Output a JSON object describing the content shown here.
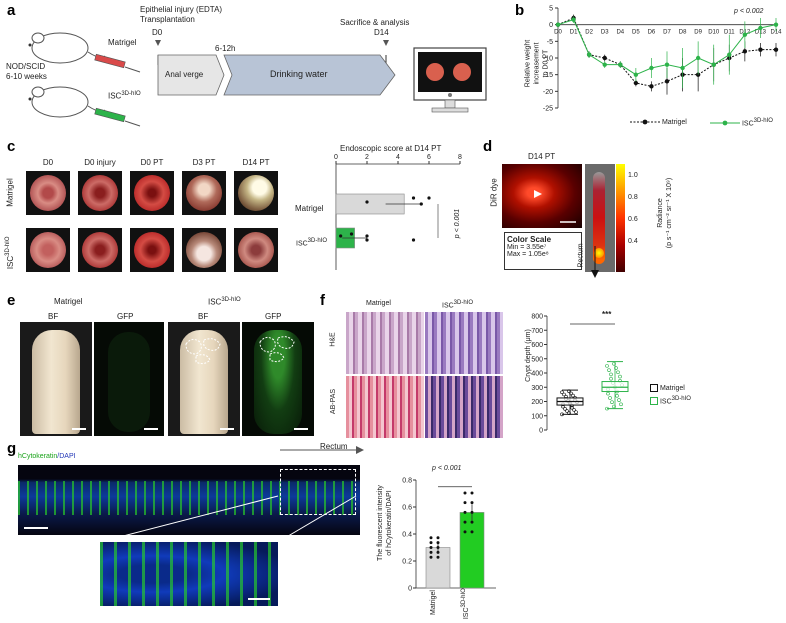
{
  "panels": {
    "a": "a",
    "b": "b",
    "c": "c",
    "d": "d",
    "e": "e",
    "f": "f",
    "g": "g"
  },
  "a": {
    "mouse_label": "NOD/SCID\n6-10 weeks",
    "matrigel": "Matrigel",
    "isc": "ISC",
    "isc_sup": "3D-hIO",
    "injury": "Epithelial injury (EDTA)\nTransplantation",
    "d0": "D0",
    "hours": "6-12h",
    "d14": "D14",
    "sacrifice": "Sacrifice & analysis",
    "anal": "Anal verge",
    "drink": "Drinking water"
  },
  "b": {
    "p_text": "p < 0.002",
    "ylabel": "Relative weight increasement\nto D0 PT",
    "legend_matrigel": "Matrigel",
    "legend_isc": "ISC",
    "legend_isc_sup": "3D-hIO",
    "colors": {
      "matrigel": "#111111",
      "isc": "#2db34a"
    }
  },
  "c": {
    "col_labels": [
      "D0",
      "D0 injury",
      "D0 PT",
      "D3 PT",
      "D14 PT"
    ],
    "row_matrigel": "Matrigel",
    "row_isc": "ISC",
    "row_isc_sup": "3D-hIO",
    "score_title": "Endoscopic score at D14 PT",
    "p_text": "p < 0.001"
  },
  "d": {
    "title": "D14 PT",
    "dye": "DiR dye",
    "radiance": "Radiance\n(p s⁻¹ cm⁻² sr⁻¹ X 10⁹)",
    "scale_ticks": [
      "1.0",
      "0.8",
      "0.6",
      "0.4"
    ],
    "scale_title": "Color Scale",
    "scale_min": "Min = 3.55e⁷",
    "scale_max": "Max = 1.05e⁸",
    "rectum": "Rectum"
  },
  "e": {
    "matrigel": "Matrigel",
    "isc": "ISC",
    "isc_sup": "3D-hIO",
    "bf": "BF",
    "gfp": "GFP"
  },
  "f": {
    "matrigel": "Matrigel",
    "isc": "ISC",
    "isc_sup": "3D-hIO",
    "he": "H&E",
    "abpas": "AB-PAS",
    "ylabel": "Crypt depth (μm)",
    "stars": "***",
    "legend_matrigel": "Matrigel",
    "legend_isc": "ISC",
    "legend_isc_sup": "3D-hIO"
  },
  "g": {
    "title_a": "hCytokeratin",
    "title_b": "/DAPI",
    "rectum": "Rectum",
    "ylabel": "The fluorescent intensity\nof hCytokeratin/DAPI",
    "p_text": "p < 0.001",
    "xcat_matrigel": "Matrigel",
    "xcat_isc": "ISC",
    "xcat_isc_sup": "3D-hIO"
  },
  "chart_data": [
    {
      "type": "line",
      "panel": "b",
      "x": [
        "D0",
        "D1",
        "D2",
        "D3",
        "D4",
        "D5",
        "D6",
        "D7",
        "D8",
        "D9",
        "D10",
        "D11",
        "D12",
        "D13",
        "D14"
      ],
      "ylim": [
        -25,
        5
      ],
      "yticks": [
        5,
        0,
        -5,
        -10,
        -15,
        -20,
        -25
      ],
      "series": [
        {
          "name": "Matrigel",
          "values": [
            0,
            2,
            -9,
            -10,
            -12,
            -17.5,
            -18.5,
            -17,
            -15,
            -15,
            -12,
            -10,
            -8,
            -7.5,
            -7.5
          ],
          "err": [
            0.5,
            1,
            1,
            1,
            1,
            1,
            1.5,
            4,
            5,
            5,
            5,
            4,
            3,
            2,
            2
          ]
        },
        {
          "name": "ISC 3D-hIO",
          "values": [
            0,
            1.5,
            -9,
            -12,
            -12,
            -15,
            -13,
            -12,
            -13,
            -10,
            -12,
            -9,
            -3,
            -1,
            0
          ],
          "err": [
            0.5,
            1,
            1,
            1,
            1,
            2,
            3,
            4,
            6,
            5,
            6,
            6,
            4,
            3,
            2
          ]
        }
      ]
    },
    {
      "type": "bar",
      "panel": "c",
      "categories": [
        "Matrigel",
        "ISC 3D-hIO"
      ],
      "values": [
        4.4,
        1.2
      ],
      "err": [
        1.2,
        0.8
      ],
      "xlim": [
        0,
        8
      ],
      "xticks": [
        0,
        2,
        4,
        6,
        8
      ]
    },
    {
      "type": "box",
      "panel": "f",
      "categories": [
        "Matrigel",
        "ISC 3D-hIO"
      ],
      "median": [
        200,
        300
      ],
      "q1": [
        175,
        270
      ],
      "q3": [
        225,
        340
      ],
      "whisker_low": [
        110,
        150
      ],
      "whisker_high": [
        280,
        480
      ],
      "ylim": [
        0,
        800
      ],
      "yticks": [
        0,
        100,
        200,
        300,
        400,
        500,
        600,
        700,
        800
      ]
    },
    {
      "type": "bar",
      "panel": "g",
      "categories": [
        "Matrigel",
        "ISC 3D-hIO"
      ],
      "values": [
        0.3,
        0.56
      ],
      "err": [
        0.03,
        0.06
      ],
      "ylim": [
        0,
        0.8
      ],
      "yticks": [
        0,
        0.2,
        0.4,
        0.6,
        0.8
      ]
    }
  ]
}
